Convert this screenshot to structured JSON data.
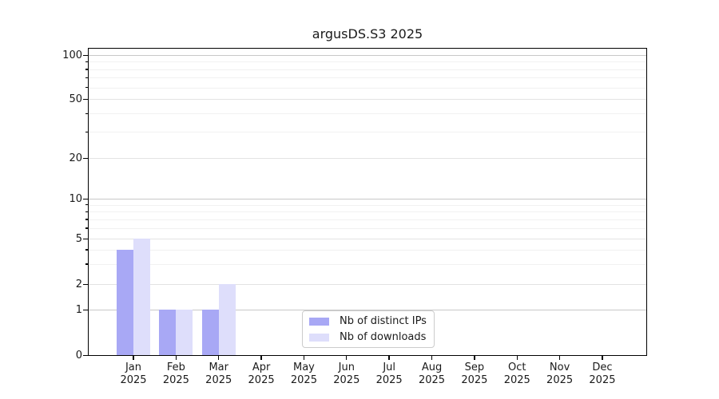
{
  "chart_data": {
    "type": "bar",
    "title": "argusDS.S3 2025",
    "year_label": "2025",
    "categories": [
      "Jan",
      "Feb",
      "Mar",
      "Apr",
      "May",
      "Jun",
      "Jul",
      "Aug",
      "Sep",
      "Oct",
      "Nov",
      "Dec"
    ],
    "series": [
      {
        "name": "Nb of distinct IPs",
        "color": "#a8a8f5",
        "values": [
          4,
          1,
          1,
          0,
          0,
          0,
          0,
          0,
          0,
          0,
          0,
          0
        ]
      },
      {
        "name": "Nb of downloads",
        "color": "#dedefb",
        "values": [
          5,
          1,
          2,
          0,
          0,
          0,
          0,
          0,
          0,
          0,
          0,
          0
        ]
      }
    ],
    "yscale": "symlog",
    "ylim": [
      0,
      100
    ],
    "yticks": [
      100,
      50,
      20,
      10,
      5,
      2,
      1,
      0
    ],
    "minor_yticks": [
      90,
      80,
      70,
      60,
      40,
      30,
      9,
      8,
      7,
      6,
      4,
      3
    ],
    "grid": true,
    "legend_position": "lower-center"
  },
  "colors": {
    "background": "#ffffff",
    "axis": "#000000",
    "text": "#1a1a1a",
    "grid_power_of_ten": "#c8c8c8",
    "grid_major": "#e3e3e3",
    "grid_minor": "#f1f1f1",
    "legend_border": "#cccccc"
  }
}
